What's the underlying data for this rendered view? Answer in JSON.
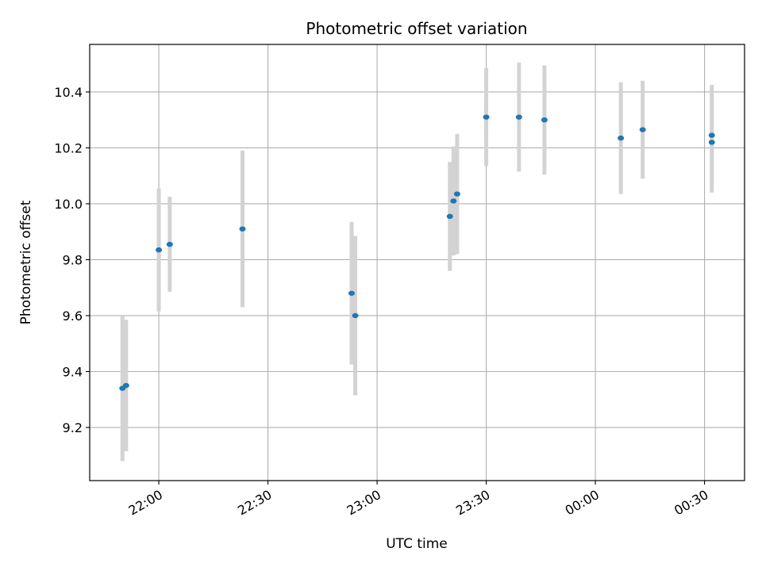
{
  "chart_data": {
    "type": "scatter",
    "title": "Photometric offset variation",
    "xlabel": "UTC time",
    "ylabel": "Photometric offset",
    "x_ticks": [
      "22:00",
      "22:30",
      "23:00",
      "23:30",
      "00:00",
      "00:30"
    ],
    "y_ticks": [
      "9.2",
      "9.4",
      "9.6",
      "9.8",
      "10.0",
      "10.2",
      "10.4"
    ],
    "y_tick_values": [
      9.2,
      9.4,
      9.6,
      9.8,
      10.0,
      10.2,
      10.4
    ],
    "xlim": [
      "21:41",
      "00:41"
    ],
    "ylim": [
      9.01,
      10.57
    ],
    "grid": true,
    "series": [
      {
        "marker_color": "#1f77b4",
        "errorbar_color": "#d3d3d3",
        "points": [
          {
            "x": "21:50",
            "y": 9.34,
            "yerr": 0.26
          },
          {
            "x": "21:51",
            "y": 9.35,
            "yerr": 0.235
          },
          {
            "x": "22:00",
            "y": 9.835,
            "yerr": 0.22
          },
          {
            "x": "22:03",
            "y": 9.855,
            "yerr": 0.17
          },
          {
            "x": "22:23",
            "y": 9.91,
            "yerr": 0.28
          },
          {
            "x": "22:53",
            "y": 9.68,
            "yerr": 0.255
          },
          {
            "x": "22:54",
            "y": 9.6,
            "yerr": 0.285
          },
          {
            "x": "23:20",
            "y": 9.955,
            "yerr": 0.195
          },
          {
            "x": "23:21",
            "y": 10.01,
            "yerr": 0.195
          },
          {
            "x": "23:22",
            "y": 10.035,
            "yerr": 0.215
          },
          {
            "x": "23:30",
            "y": 10.31,
            "yerr": 0.175
          },
          {
            "x": "23:39",
            "y": 10.31,
            "yerr": 0.195
          },
          {
            "x": "23:46",
            "y": 10.3,
            "yerr": 0.195
          },
          {
            "x": "00:07",
            "y": 10.235,
            "yerr": 0.2
          },
          {
            "x": "00:13",
            "y": 10.265,
            "yerr": 0.175
          },
          {
            "x": "00:32",
            "y": 10.245,
            "yerr": 0.18
          },
          {
            "x": "00:32",
            "y": 10.22,
            "yerr": 0.18
          }
        ]
      }
    ]
  }
}
